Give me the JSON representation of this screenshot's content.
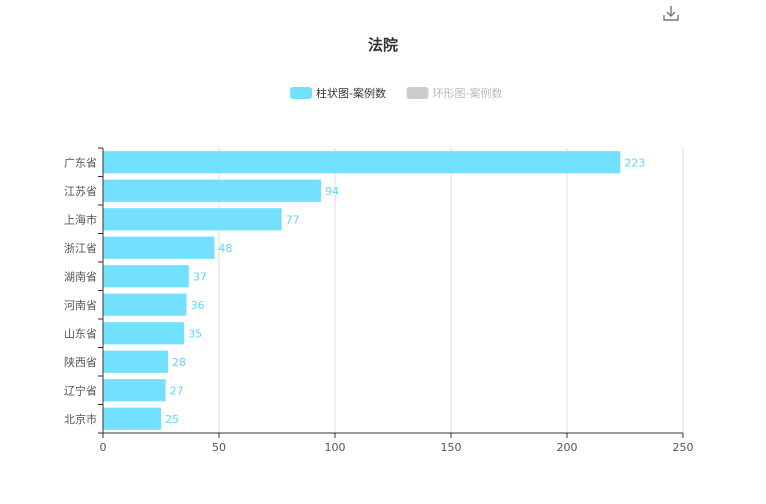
{
  "chart_data": {
    "type": "bar",
    "orientation": "horizontal",
    "title": "法院",
    "categories": [
      "广东省",
      "江苏省",
      "上海市",
      "浙江省",
      "湖南省",
      "河南省",
      "山东省",
      "陕西省",
      "辽宁省",
      "北京市"
    ],
    "series": [
      {
        "name": "柱状图-案例数",
        "values": [
          223,
          94,
          77,
          48,
          37,
          36,
          35,
          28,
          27,
          25
        ]
      }
    ],
    "legend": {
      "items": [
        {
          "label": "柱状图-案例数",
          "active": true
        },
        {
          "label": "环形图-案例数",
          "active": false
        }
      ],
      "position": "top-center"
    },
    "xlim": [
      0,
      250
    ],
    "x_ticks": [
      0,
      50,
      100,
      150,
      200,
      250
    ],
    "grid": "vertical",
    "data_labels": true
  },
  "colors": {
    "bar": "#73e0ff",
    "label": "#5ad8ff",
    "legend_inactive": "#cccccc",
    "legend_inactive_text": "#bbbbbb",
    "axis": "#333333",
    "grid": "#dddddd"
  },
  "toolbar": {
    "download_icon": "download-icon"
  }
}
